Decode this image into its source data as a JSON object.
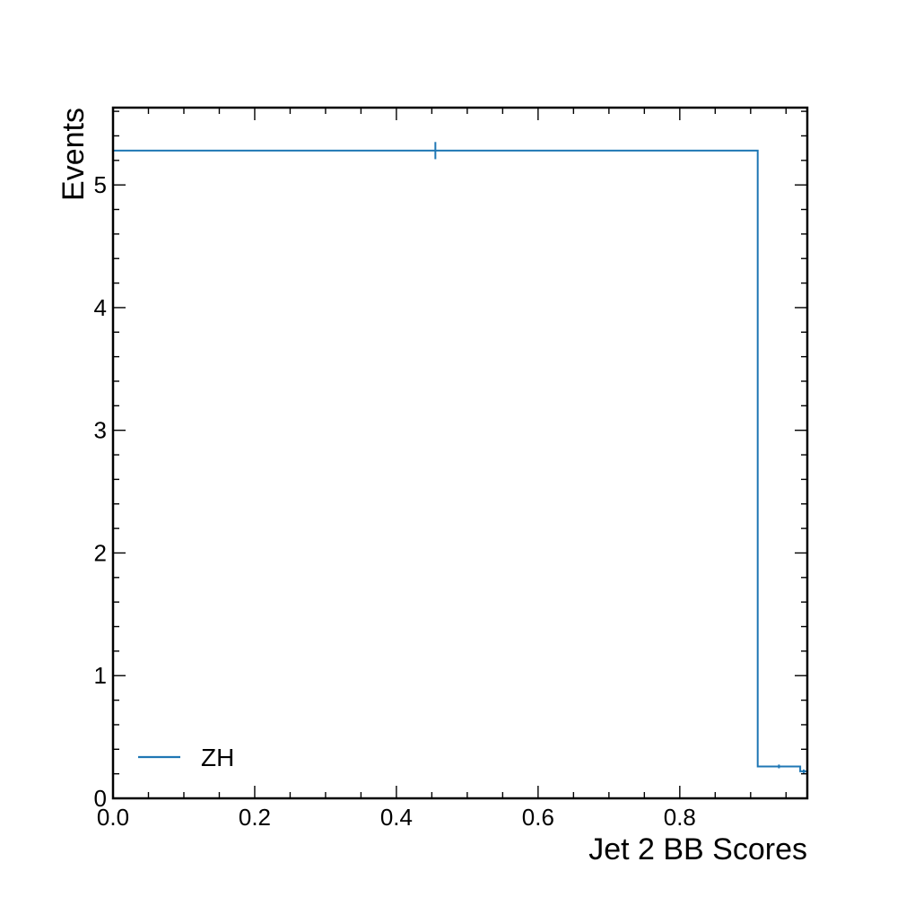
{
  "chart_data": {
    "type": "histogram-step",
    "xlabel": "Jet 2 BB Scores",
    "ylabel": "Events",
    "xlim": [
      0.0,
      0.98
    ],
    "ylim": [
      0.0,
      5.63
    ],
    "xticks": [
      "0.0",
      "0.2",
      "0.4",
      "0.6",
      "0.8"
    ],
    "yticks": [
      "0",
      "1",
      "2",
      "3",
      "4",
      "5"
    ],
    "grid": false,
    "legend_position": "bottom-left",
    "series": [
      {
        "name": "ZH",
        "color": "#1f77b4",
        "bins": [
          {
            "x0": 0.0,
            "x1": 0.91,
            "y": 5.28,
            "err": 0.07
          },
          {
            "x0": 0.91,
            "x1": 0.97,
            "y": 0.26,
            "err": 0.015
          },
          {
            "x0": 0.97,
            "x1": 0.98,
            "y": 0.22,
            "err": 0.015
          }
        ]
      }
    ]
  }
}
